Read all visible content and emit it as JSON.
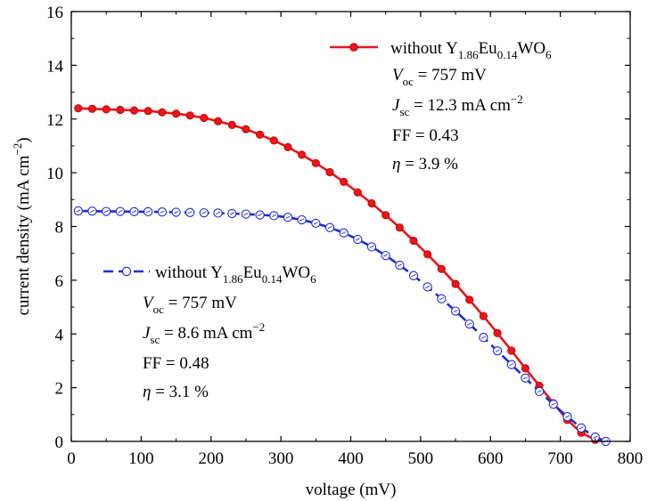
{
  "chart_data": {
    "type": "line",
    "xlabel": "voltage (mV)",
    "ylabel": "current density (mA cm",
    "ylabel_sup": "−2",
    "ylabel_close": ")",
    "xlim": [
      0,
      800
    ],
    "ylim": [
      0,
      16
    ],
    "xticks": [
      0,
      100,
      200,
      300,
      400,
      500,
      600,
      700,
      800
    ],
    "yticks": [
      0,
      2,
      4,
      6,
      8,
      10,
      12,
      14,
      16
    ],
    "grid": false,
    "series": [
      {
        "name": "without Y1.86Eu0.14WO6",
        "color": "#e8161a",
        "style": "solid",
        "marker": "filled-circle",
        "x": [
          10,
          30,
          50,
          70,
          90,
          110,
          130,
          150,
          170,
          190,
          210,
          230,
          250,
          270,
          290,
          310,
          330,
          350,
          370,
          390,
          410,
          430,
          450,
          470,
          490,
          510,
          530,
          550,
          570,
          590,
          610,
          630,
          650,
          670,
          690,
          710,
          730,
          750,
          765
        ],
        "y": [
          12.4,
          12.38,
          12.36,
          12.34,
          12.32,
          12.3,
          12.25,
          12.2,
          12.13,
          12.04,
          11.92,
          11.78,
          11.62,
          11.42,
          11.2,
          10.95,
          10.67,
          10.36,
          10.02,
          9.66,
          9.27,
          8.86,
          8.42,
          7.96,
          7.47,
          6.96,
          6.42,
          5.86,
          5.27,
          4.66,
          4.03,
          3.38,
          2.72,
          2.07,
          1.42,
          0.8,
          0.32,
          0.06,
          0.0
        ]
      },
      {
        "name": "without Y1.86Eu0.14WO6",
        "color": "#1f2bd6",
        "style": "dashed",
        "marker": "open-circle",
        "x": [
          10,
          30,
          50,
          70,
          90,
          110,
          130,
          150,
          170,
          190,
          210,
          230,
          250,
          270,
          290,
          310,
          330,
          350,
          370,
          390,
          410,
          430,
          450,
          470,
          490,
          510,
          530,
          550,
          570,
          590,
          610,
          630,
          650,
          670,
          690,
          710,
          730,
          750,
          765
        ],
        "y": [
          8.58,
          8.57,
          8.56,
          8.56,
          8.55,
          8.55,
          8.54,
          8.53,
          8.52,
          8.51,
          8.5,
          8.48,
          8.46,
          8.43,
          8.4,
          8.34,
          8.25,
          8.12,
          7.96,
          7.76,
          7.52,
          7.24,
          6.92,
          6.56,
          6.17,
          5.75,
          5.31,
          4.85,
          4.37,
          3.87,
          3.37,
          2.86,
          2.36,
          1.86,
          1.38,
          0.92,
          0.5,
          0.16,
          0.0
        ]
      }
    ],
    "legends": [
      {
        "series_index": 0,
        "label_prefix": "without Y",
        "label_sub1": "1.86",
        "label_mid": "Eu",
        "label_sub2": "0.14",
        "label_mid2": "WO",
        "label_sub3": "6",
        "voc_sym": "V",
        "voc_sub": "oc",
        "voc_val": " = 757 mV",
        "jsc_sym": "J",
        "jsc_sub": "sc",
        "jsc_val": " = 12.3 mA cm",
        "jsc_sup": "−2",
        "ff": "FF = 0.43",
        "eta_sym": "η",
        "eta_val": " = 3.9 %"
      },
      {
        "series_index": 1,
        "label_prefix": "without Y",
        "label_sub1": "1.86",
        "label_mid": "Eu",
        "label_sub2": "0.14",
        "label_mid2": "WO",
        "label_sub3": "6",
        "voc_sym": "V",
        "voc_sub": "oc",
        "voc_val": " = 757 mV",
        "jsc_sym": "J",
        "jsc_sub": "sc",
        "jsc_val": " = 8.6 mA cm",
        "jsc_sup": "−2",
        "ff": "FF = 0.48",
        "eta_sym": "η",
        "eta_val": " = 3.1 %"
      }
    ]
  }
}
